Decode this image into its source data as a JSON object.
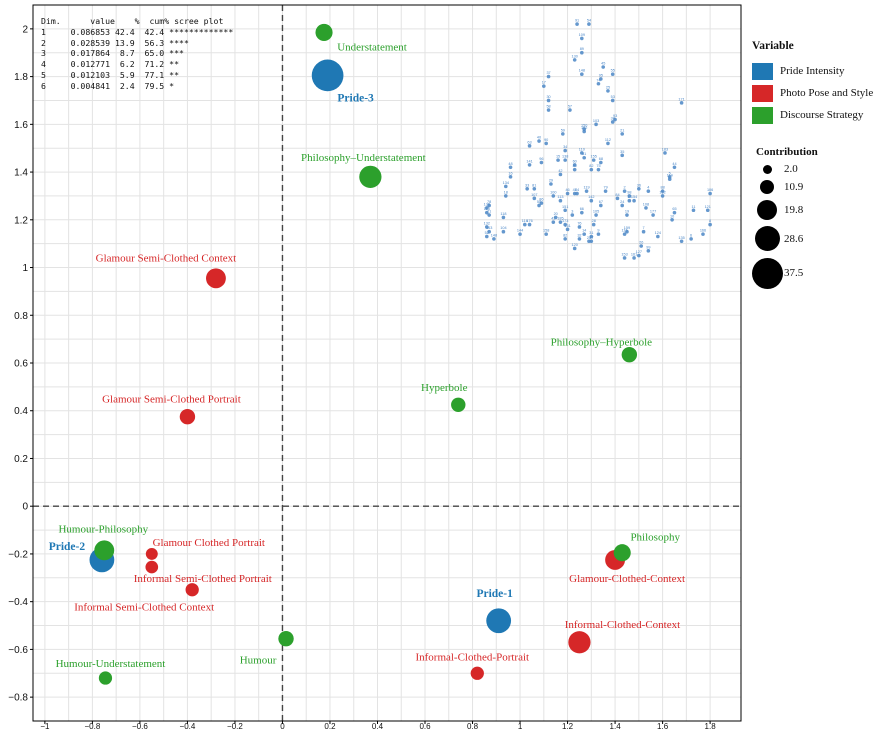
{
  "chart_data": {
    "type": "scatter",
    "title": "",
    "xlabel": "",
    "ylabel": "",
    "xlim": [
      -1.05,
      1.93
    ],
    "ylim": [
      -0.9,
      2.1
    ],
    "x_ticks": [
      -1,
      -0.8,
      -0.6,
      -0.4,
      -0.2,
      0,
      0.2,
      0.4,
      0.6,
      0.8,
      1,
      1.2,
      1.4,
      1.6,
      1.8
    ],
    "x_tick_labels": [
      "−1",
      "−0.8",
      "−0.6",
      "−0.4",
      "−0.2",
      "0",
      "0.2",
      "0.4",
      "0.6",
      "0.8",
      "1",
      "1.2",
      "1.4",
      "1.6",
      "1.8"
    ],
    "y_ticks": [
      -0.8,
      -0.6,
      -0.4,
      -0.2,
      0,
      0.2,
      0.4,
      0.6,
      0.8,
      1,
      1.2,
      1.4,
      1.6,
      1.8,
      2
    ],
    "y_tick_labels": [
      "−0.8",
      "−0.6",
      "−0.4",
      "−0.2",
      "0",
      "0.2",
      "0.4",
      "0.6",
      "0.8",
      "1",
      "1.2",
      "1.4",
      "1.6",
      "1.8",
      "2"
    ],
    "grid": true,
    "reference_lines": {
      "x": 0,
      "y": 0,
      "style": "dashed"
    },
    "colors": {
      "Pride Intensity": "#1f78b4",
      "Photo Pose and Style": "#d62728",
      "Discourse Strategy": "#2ca02c",
      "individuals": "#4a86c6"
    },
    "categories": [
      {
        "label": "Pride-1",
        "group": "Pride Intensity",
        "x": 0.91,
        "y": -0.48,
        "contribution": 20,
        "label_dx": -4,
        "label_dy": -28,
        "bold": true
      },
      {
        "label": "Pride-2",
        "group": "Pride Intensity",
        "x": -0.76,
        "y": -0.225,
        "contribution": 20,
        "label_dx": -35,
        "label_dy": -14,
        "bold": true
      },
      {
        "label": "Pride-3",
        "group": "Pride Intensity",
        "x": 0.19,
        "y": 1.805,
        "contribution": 37.5,
        "label_dx": 28,
        "label_dy": 22,
        "bold": true
      },
      {
        "label": "Glamour Semi-Clothed Context",
        "group": "Photo Pose and Style",
        "x": -0.28,
        "y": 0.955,
        "contribution": 10.9,
        "label_dx": -50,
        "label_dy": -21
      },
      {
        "label": "Glamour Semi-Clothed Portrait",
        "group": "Photo Pose and Style",
        "x": -0.4,
        "y": 0.375,
        "contribution": 5,
        "label_dx": -16,
        "label_dy": -18
      },
      {
        "label": "Glamour Clothed Portrait",
        "group": "Photo Pose and Style",
        "x": -0.55,
        "y": -0.2,
        "contribution": 2,
        "label_dx": 57,
        "label_dy": -12
      },
      {
        "label": "Informal Semi-Clothed Portrait",
        "group": "Photo Pose and Style",
        "x": -0.55,
        "y": -0.255,
        "contribution": 2.5,
        "label_dx": 51,
        "label_dy": 11
      },
      {
        "label": "Informal Semi-Clothed Context",
        "group": "Photo Pose and Style",
        "x": -0.38,
        "y": -0.35,
        "contribution": 3,
        "label_dx": -48,
        "label_dy": 17
      },
      {
        "label": "Glamour-Clothed-Context",
        "group": "Photo Pose and Style",
        "x": 1.4,
        "y": -0.225,
        "contribution": 10.9,
        "label_dx": 12,
        "label_dy": 18
      },
      {
        "label": "Informal-Clothed-Context",
        "group": "Photo Pose and Style",
        "x": 1.25,
        "y": -0.57,
        "contribution": 15,
        "label_dx": 43,
        "label_dy": -18
      },
      {
        "label": "Informal-Clothed-Portrait",
        "group": "Photo Pose and Style",
        "x": 0.82,
        "y": -0.7,
        "contribution": 3,
        "label_dx": -5,
        "label_dy": -17
      },
      {
        "label": "Understatement",
        "group": "Discourse Strategy",
        "x": 0.175,
        "y": 1.985,
        "contribution": 7,
        "label_dx": 48,
        "label_dy": 14
      },
      {
        "label": "Philosophy–Understatement",
        "group": "Discourse Strategy",
        "x": 0.37,
        "y": 1.38,
        "contribution": 15,
        "label_dx": -7,
        "label_dy": -20
      },
      {
        "label": "Philosophy–Hyperbole",
        "group": "Discourse Strategy",
        "x": 1.46,
        "y": 0.635,
        "contribution": 5,
        "label_dx": -28,
        "label_dy": -13
      },
      {
        "label": "Hyperbole",
        "group": "Discourse Strategy",
        "x": 0.74,
        "y": 0.425,
        "contribution": 4,
        "label_dx": -14,
        "label_dy": -18
      },
      {
        "label": "Humour-Philosophy",
        "group": "Discourse Strategy",
        "x": -0.75,
        "y": -0.185,
        "contribution": 10.9,
        "label_dx": -1,
        "label_dy": -22
      },
      {
        "label": "Humour-Understatement",
        "group": "Discourse Strategy",
        "x": -0.745,
        "y": -0.72,
        "contribution": 3,
        "label_dx": 5,
        "label_dy": -15
      },
      {
        "label": "Humour",
        "group": "Discourse Strategy",
        "x": 0.015,
        "y": -0.555,
        "contribution": 5,
        "label_dx": -28,
        "label_dy": 21
      },
      {
        "label": "Philosophy",
        "group": "Discourse Strategy",
        "x": 1.43,
        "y": -0.195,
        "contribution": 7,
        "label_dx": 33,
        "label_dy": -16
      }
    ],
    "individuals": [
      {
        "label": "91",
        "x": 1.24,
        "y": 2.02
      },
      {
        "label": "54",
        "x": 1.29,
        "y": 2.02
      },
      {
        "label": "109",
        "x": 1.26,
        "y": 1.96
      },
      {
        "label": "89",
        "x": 1.26,
        "y": 1.9
      },
      {
        "label": "130",
        "x": 1.23,
        "y": 1.87
      },
      {
        "label": "45",
        "x": 1.35,
        "y": 1.84
      },
      {
        "label": "148",
        "x": 1.26,
        "y": 1.81
      },
      {
        "label": "55",
        "x": 1.39,
        "y": 1.81
      },
      {
        "label": "37",
        "x": 1.12,
        "y": 1.8
      },
      {
        "label": "95",
        "x": 1.34,
        "y": 1.79
      },
      {
        "label": "74",
        "x": 1.33,
        "y": 1.77
      },
      {
        "label": "17",
        "x": 1.1,
        "y": 1.76
      },
      {
        "label": "25",
        "x": 1.37,
        "y": 1.74
      },
      {
        "label": "30",
        "x": 1.12,
        "y": 1.7
      },
      {
        "label": "53",
        "x": 1.39,
        "y": 1.7
      },
      {
        "label": "171",
        "x": 1.68,
        "y": 1.69
      },
      {
        "label": "57",
        "x": 1.21,
        "y": 1.66
      },
      {
        "label": "58",
        "x": 1.12,
        "y": 1.66
      },
      {
        "label": "93",
        "x": 1.4,
        "y": 1.62
      },
      {
        "label": "38",
        "x": 1.39,
        "y": 1.61
      },
      {
        "label": "103",
        "x": 1.32,
        "y": 1.6
      },
      {
        "label": "150",
        "x": 1.27,
        "y": 1.58
      },
      {
        "label": "102",
        "x": 1.27,
        "y": 1.57
      },
      {
        "label": "59",
        "x": 1.18,
        "y": 1.56
      },
      {
        "label": "21",
        "x": 1.43,
        "y": 1.56
      },
      {
        "label": "40",
        "x": 1.08,
        "y": 1.53
      },
      {
        "label": "63",
        "x": 1.04,
        "y": 1.51
      },
      {
        "label": "90",
        "x": 1.11,
        "y": 1.52
      },
      {
        "label": "112",
        "x": 1.37,
        "y": 1.52
      },
      {
        "label": "34",
        "x": 1.19,
        "y": 1.49
      },
      {
        "label": "110",
        "x": 1.26,
        "y": 1.48
      },
      {
        "label": "183",
        "x": 1.61,
        "y": 1.48
      },
      {
        "label": "35",
        "x": 1.43,
        "y": 1.47
      },
      {
        "label": "51",
        "x": 1.27,
        "y": 1.46
      },
      {
        "label": "15",
        "x": 1.16,
        "y": 1.45
      },
      {
        "label": "138",
        "x": 1.19,
        "y": 1.45
      },
      {
        "label": "155",
        "x": 1.31,
        "y": 1.45
      },
      {
        "label": "68",
        "x": 1.34,
        "y": 1.44
      },
      {
        "label": "96",
        "x": 1.09,
        "y": 1.44
      },
      {
        "label": "60",
        "x": 1.23,
        "y": 1.43
      },
      {
        "label": "141",
        "x": 1.04,
        "y": 1.43
      },
      {
        "label": "80",
        "x": 1.23,
        "y": 1.41
      },
      {
        "label": "82",
        "x": 1.3,
        "y": 1.41
      },
      {
        "label": "75",
        "x": 1.33,
        "y": 1.41
      },
      {
        "label": "44",
        "x": 1.65,
        "y": 1.42
      },
      {
        "label": "48",
        "x": 0.96,
        "y": 1.42
      },
      {
        "label": "42",
        "x": 1.17,
        "y": 1.39
      },
      {
        "label": "5",
        "x": 1.63,
        "y": 1.38
      },
      {
        "label": "16",
        "x": 0.96,
        "y": 1.38
      },
      {
        "label": "114",
        "x": 1.63,
        "y": 1.37
      },
      {
        "label": "29",
        "x": 1.13,
        "y": 1.35
      },
      {
        "label": "134",
        "x": 0.94,
        "y": 1.34
      },
      {
        "label": "33",
        "x": 1.03,
        "y": 1.33
      },
      {
        "label": "81",
        "x": 1.06,
        "y": 1.33
      },
      {
        "label": "46",
        "x": 1.2,
        "y": 1.31
      },
      {
        "label": "47",
        "x": 1.23,
        "y": 1.31
      },
      {
        "label": "64",
        "x": 1.24,
        "y": 1.31
      },
      {
        "label": "119",
        "x": 1.28,
        "y": 1.32
      },
      {
        "label": "79",
        "x": 1.36,
        "y": 1.32
      },
      {
        "label": "2",
        "x": 1.44,
        "y": 1.32
      },
      {
        "label": "4",
        "x": 1.54,
        "y": 1.32
      },
      {
        "label": "36",
        "x": 1.5,
        "y": 1.33
      },
      {
        "label": "88",
        "x": 1.6,
        "y": 1.32
      },
      {
        "label": "18",
        "x": 0.94,
        "y": 1.3
      },
      {
        "label": "100",
        "x": 1.14,
        "y": 1.3
      },
      {
        "label": "107",
        "x": 1.06,
        "y": 1.29
      },
      {
        "label": "84",
        "x": 1.41,
        "y": 1.29
      },
      {
        "label": "98",
        "x": 1.46,
        "y": 1.3
      },
      {
        "label": "12",
        "x": 1.46,
        "y": 1.28
      },
      {
        "label": "154",
        "x": 1.48,
        "y": 1.28
      },
      {
        "label": "106",
        "x": 1.8,
        "y": 1.31
      },
      {
        "label": "113",
        "x": 1.17,
        "y": 1.28
      },
      {
        "label": "142",
        "x": 1.3,
        "y": 1.28
      },
      {
        "label": "152",
        "x": 1.6,
        "y": 1.3
      },
      {
        "label": "86",
        "x": 1.09,
        "y": 1.27
      },
      {
        "label": "67",
        "x": 1.34,
        "y": 1.26
      },
      {
        "label": "24",
        "x": 1.43,
        "y": 1.26
      },
      {
        "label": "108",
        "x": 1.53,
        "y": 1.25
      },
      {
        "label": "50",
        "x": 1.08,
        "y": 1.26
      },
      {
        "label": "78",
        "x": 0.87,
        "y": 1.26
      },
      {
        "label": "136",
        "x": 0.86,
        "y": 1.25
      },
      {
        "label": "115",
        "x": 0.86,
        "y": 1.23
      },
      {
        "label": "71",
        "x": 0.87,
        "y": 1.22
      },
      {
        "label": "151",
        "x": 1.19,
        "y": 1.24
      },
      {
        "label": "66",
        "x": 1.26,
        "y": 1.23
      },
      {
        "label": "118",
        "x": 0.93,
        "y": 1.21
      },
      {
        "label": "20",
        "x": 1.15,
        "y": 1.21
      },
      {
        "label": "11",
        "x": 1.73,
        "y": 1.24
      },
      {
        "label": "177",
        "x": 1.56,
        "y": 1.22
      },
      {
        "label": "65",
        "x": 1.65,
        "y": 1.23
      },
      {
        "label": "121",
        "x": 1.79,
        "y": 1.24
      },
      {
        "label": "3",
        "x": 1.22,
        "y": 1.22
      },
      {
        "label": "105",
        "x": 1.32,
        "y": 1.22
      },
      {
        "label": "19",
        "x": 1.45,
        "y": 1.22
      },
      {
        "label": "10",
        "x": 1.64,
        "y": 1.2
      },
      {
        "label": "185",
        "x": 1.17,
        "y": 1.19
      },
      {
        "label": "116",
        "x": 1.02,
        "y": 1.18
      },
      {
        "label": "176",
        "x": 1.04,
        "y": 1.18
      },
      {
        "label": "43",
        "x": 1.14,
        "y": 1.19
      },
      {
        "label": "173",
        "x": 1.19,
        "y": 1.18
      },
      {
        "label": "76",
        "x": 1.25,
        "y": 1.17
      },
      {
        "label": "28",
        "x": 1.31,
        "y": 1.18
      },
      {
        "label": "8",
        "x": 1.8,
        "y": 1.18
      },
      {
        "label": "131",
        "x": 1.2,
        "y": 1.16
      },
      {
        "label": "132",
        "x": 0.86,
        "y": 1.17
      },
      {
        "label": "163",
        "x": 0.87,
        "y": 1.15
      },
      {
        "label": "104",
        "x": 0.93,
        "y": 1.15
      },
      {
        "label": "144",
        "x": 1.0,
        "y": 1.14
      },
      {
        "label": "158",
        "x": 1.11,
        "y": 1.14
      },
      {
        "label": "14",
        "x": 1.27,
        "y": 1.14
      },
      {
        "label": "31",
        "x": 1.3,
        "y": 1.13
      },
      {
        "label": "9",
        "x": 1.33,
        "y": 1.14
      },
      {
        "label": "116",
        "x": 1.44,
        "y": 1.14
      },
      {
        "label": "159",
        "x": 1.45,
        "y": 1.15
      },
      {
        "label": "7",
        "x": 1.52,
        "y": 1.15
      },
      {
        "label": "166",
        "x": 1.77,
        "y": 1.14
      },
      {
        "label": "52",
        "x": 0.86,
        "y": 1.13
      },
      {
        "label": "148",
        "x": 0.89,
        "y": 1.12
      },
      {
        "label": "82",
        "x": 1.19,
        "y": 1.12
      },
      {
        "label": "32",
        "x": 1.25,
        "y": 1.12
      },
      {
        "label": "23",
        "x": 1.29,
        "y": 1.11
      },
      {
        "label": "124",
        "x": 1.58,
        "y": 1.13
      },
      {
        "label": "6",
        "x": 1.72,
        "y": 1.12
      },
      {
        "label": "97",
        "x": 1.3,
        "y": 1.11
      },
      {
        "label": "135",
        "x": 1.68,
        "y": 1.11
      },
      {
        "label": "26",
        "x": 1.51,
        "y": 1.09
      },
      {
        "label": "120",
        "x": 1.23,
        "y": 1.08
      },
      {
        "label": "99",
        "x": 1.54,
        "y": 1.07
      },
      {
        "label": "127",
        "x": 1.5,
        "y": 1.05
      },
      {
        "label": "153",
        "x": 1.44,
        "y": 1.04
      },
      {
        "label": "161",
        "x": 1.48,
        "y": 1.04
      }
    ],
    "legend": {
      "title": "Variable",
      "position": "right",
      "items": [
        {
          "label": "Pride Intensity",
          "color": "#1f78b4"
        },
        {
          "label": "Photo Pose and Style",
          "color": "#d62728"
        },
        {
          "label": "Discourse Strategy",
          "color": "#2ca02c"
        }
      ]
    },
    "size_legend": {
      "title": "Contribution",
      "values": [
        "2.0",
        "10.9",
        "19.8",
        "28.6",
        "37.5"
      ]
    },
    "scree": {
      "header": "Dim.      value    %  cum% scree plot",
      "rows": [
        "1     0.086853 42.4  42.4 *************",
        "2     0.028539 13.9  56.3 ****",
        "3     0.017864  8.7  65.0 ***",
        "4     0.012771  6.2  71.2 **",
        "5     0.012103  5.9  77.1 **",
        "6     0.004841  2.4  79.5 *"
      ]
    }
  }
}
